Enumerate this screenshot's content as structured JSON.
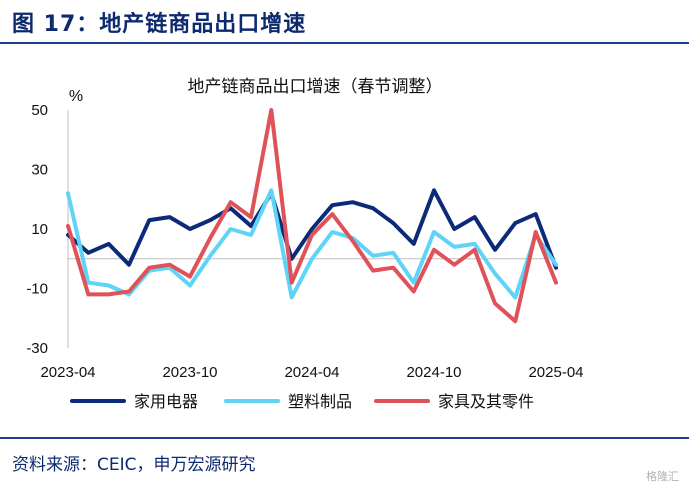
{
  "header": {
    "title": "图 17：地产链商品出口增速"
  },
  "source": {
    "text": "资料来源：CEIC，申万宏源研究"
  },
  "watermark": {
    "text": "格隆汇"
  },
  "chart_data": {
    "type": "line",
    "title": "地产链商品出口增速（春节调整）",
    "ylabel": "%",
    "xlabel": "",
    "ylim": [
      -30,
      50
    ],
    "yticks": [
      50,
      30,
      10,
      -10,
      -30
    ],
    "xticks": [
      "2023-04",
      "2023-10",
      "2024-04",
      "2024-10",
      "2025-04"
    ],
    "x": [
      "2023-04",
      "2023-05",
      "2023-06",
      "2023-07",
      "2023-08",
      "2023-09",
      "2023-10",
      "2023-11",
      "2023-12",
      "2024-01",
      "2024-02",
      "2024-03",
      "2024-04",
      "2024-05",
      "2024-06",
      "2024-07",
      "2024-08",
      "2024-09",
      "2024-10",
      "2024-11",
      "2024-12",
      "2025-01",
      "2025-02",
      "2025-03",
      "2025-04"
    ],
    "legend_position": "bottom",
    "grid": false,
    "series": [
      {
        "name": "家用电器",
        "color": "#0b2a7a",
        "values": [
          8,
          2,
          5,
          -2,
          13,
          14,
          10,
          13,
          17,
          11,
          22,
          0,
          10,
          18,
          19,
          17,
          12,
          5,
          23,
          10,
          14,
          3,
          12,
          15,
          -3
        ]
      },
      {
        "name": "塑料制品",
        "color": "#5fd4f6",
        "values": [
          22,
          -8,
          -9,
          -12,
          -4,
          -3,
          -9,
          1,
          10,
          8,
          23,
          -13,
          0,
          9,
          7,
          1,
          2,
          -8,
          9,
          4,
          5,
          -5,
          -13,
          8,
          -2
        ]
      },
      {
        "name": "家具及其零件",
        "color": "#e0525a",
        "values": [
          11,
          -12,
          -12,
          -11,
          -3,
          -2,
          -6,
          7,
          19,
          14,
          50,
          -8,
          8,
          15,
          6,
          -4,
          -3,
          -11,
          3,
          -2,
          3,
          -15,
          -21,
          9,
          -8
        ]
      }
    ]
  }
}
